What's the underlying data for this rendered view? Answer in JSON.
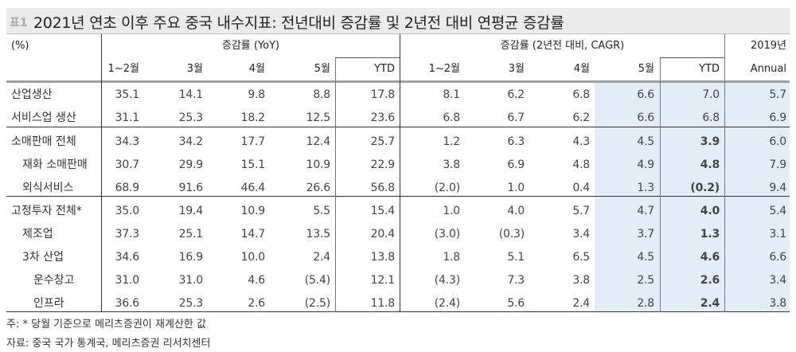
{
  "title": {
    "tag": "표1",
    "text": "2021년 연초 이후 주요 중국 내수지표: 전년대비 증감률 및 2년전 대비 연평균 증감률"
  },
  "header": {
    "unit": "(%)",
    "group_yoy": "증감률 (YoY)",
    "group_cagr": "증감률 (2년전 대비, CAGR)",
    "group_2019": "2019년",
    "yoy_cols": [
      "1~2월",
      "3월",
      "4월",
      "5월",
      "YTD"
    ],
    "cagr_cols": [
      "1~2월",
      "3월",
      "4월",
      "5월",
      "YTD"
    ],
    "annual_col": "Annual"
  },
  "rows": [
    {
      "label": "산업생산",
      "indent": 0,
      "yoy": [
        "35.1",
        "14.1",
        "9.8",
        "8.8",
        "17.8"
      ],
      "cagr": [
        "8.1",
        "6.2",
        "6.8",
        "6.6",
        "7.0"
      ],
      "annual": "5.7",
      "cagr_ytd_bold": false
    },
    {
      "label": "서비스업 생산",
      "indent": 0,
      "yoy": [
        "31.1",
        "25.3",
        "18.2",
        "12.5",
        "23.6"
      ],
      "cagr": [
        "6.8",
        "6.7",
        "6.2",
        "6.6",
        "6.8"
      ],
      "annual": "6.9",
      "cagr_ytd_bold": false
    },
    {
      "label": "소매판매 전체",
      "indent": 0,
      "yoy": [
        "34.3",
        "34.2",
        "17.7",
        "12.4",
        "25.7"
      ],
      "cagr": [
        "1.2",
        "6.3",
        "4.3",
        "4.5",
        "3.9"
      ],
      "annual": "6.0",
      "cagr_ytd_bold": true
    },
    {
      "label": "재화 소매판매",
      "indent": 1,
      "yoy": [
        "30.7",
        "29.9",
        "15.1",
        "10.9",
        "22.9"
      ],
      "cagr": [
        "3.8",
        "6.9",
        "4.8",
        "4.9",
        "4.8"
      ],
      "annual": "7.9",
      "cagr_ytd_bold": true
    },
    {
      "label": "외식서비스",
      "indent": 1,
      "yoy": [
        "68.9",
        "91.6",
        "46.4",
        "26.6",
        "56.8"
      ],
      "cagr": [
        "(2.0)",
        "1.0",
        "0.4",
        "1.3",
        "(0.2)"
      ],
      "annual": "9.4",
      "cagr_ytd_bold": true
    },
    {
      "label": "고정투자 전체*",
      "indent": 0,
      "yoy": [
        "35.0",
        "19.4",
        "10.9",
        "5.5",
        "15.4"
      ],
      "cagr": [
        "1.0",
        "4.0",
        "5.7",
        "4.7",
        "4.0"
      ],
      "annual": "5.4",
      "cagr_ytd_bold": true
    },
    {
      "label": "제조업",
      "indent": 1,
      "yoy": [
        "37.3",
        "25.1",
        "14.7",
        "13.5",
        "20.4"
      ],
      "cagr": [
        "(3.0)",
        "(0.3)",
        "3.4",
        "3.7",
        "1.3"
      ],
      "annual": "3.1",
      "cagr_ytd_bold": true
    },
    {
      "label": "3차 산업",
      "indent": 1,
      "yoy": [
        "34.6",
        "16.9",
        "10.0",
        "2.4",
        "13.8"
      ],
      "cagr": [
        "1.8",
        "5.1",
        "6.5",
        "4.5",
        "4.6"
      ],
      "annual": "6.6",
      "cagr_ytd_bold": true
    },
    {
      "label": "운수창고",
      "indent": 2,
      "yoy": [
        "31.0",
        "31.0",
        "4.6",
        "(5.4)",
        "12.1"
      ],
      "cagr": [
        "(4.3)",
        "7.3",
        "3.8",
        "2.5",
        "2.6"
      ],
      "annual": "3.4",
      "cagr_ytd_bold": true
    },
    {
      "label": "인프라",
      "indent": 2,
      "yoy": [
        "36.6",
        "25.3",
        "2.6",
        "(2.5)",
        "11.8"
      ],
      "cagr": [
        "(2.4)",
        "5.6",
        "2.4",
        "2.8",
        "2.4"
      ],
      "annual": "3.8",
      "cagr_ytd_bold": true
    }
  ],
  "footnotes": {
    "note": "주: * 당월 기준으로 메리츠증권이 재계산한 값",
    "source": "자료: 중국 국가 통계국, 메리츠증권 리서치센터"
  },
  "colors": {
    "title_bg": "#ebebeb",
    "highlight_bg": "#e3edf8",
    "title_tag": "#a9a9a9"
  }
}
